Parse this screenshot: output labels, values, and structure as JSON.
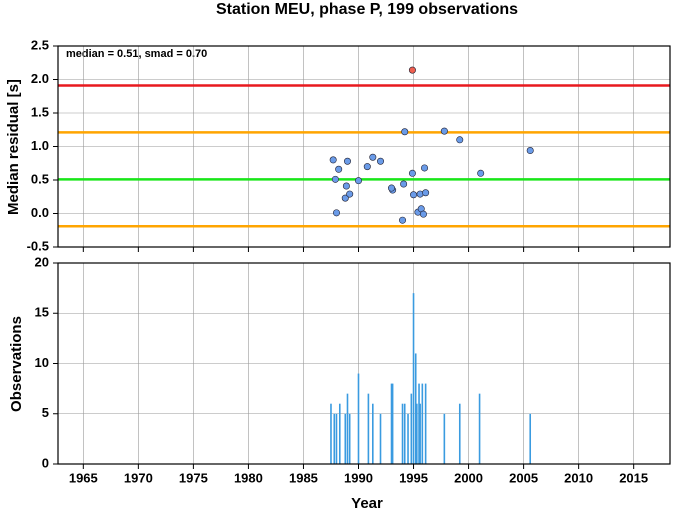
{
  "chart_data": [
    {
      "type": "scatter",
      "title": "Station MEU, phase P, 199 observations",
      "annotation": "median = 0.51, smad = 0.70",
      "y_label": "Median residual [s]",
      "x": [
        1987.7,
        1987.9,
        1988.0,
        1988.2,
        1989.0,
        1988.9,
        1988.8,
        1989.2,
        1990.0,
        1990.8,
        1991.3,
        1992.0,
        1993.1,
        1993.0,
        1994.0,
        1994.1,
        1994.2,
        1994.9,
        1994.9,
        1995.0,
        1995.4,
        1995.6,
        1995.7,
        1995.9,
        1996.1,
        1996.0,
        1997.8,
        1999.2,
        2001.1,
        2005.6
      ],
      "values": [
        0.8,
        0.51,
        0.01,
        0.66,
        0.78,
        0.41,
        0.23,
        0.29,
        0.49,
        0.7,
        0.84,
        0.78,
        0.35,
        0.38,
        -0.1,
        0.44,
        1.22,
        2.14,
        0.6,
        0.28,
        0.02,
        0.29,
        0.07,
        -0.01,
        0.31,
        0.68,
        1.23,
        1.1,
        0.6,
        0.94
      ],
      "point_colors": [
        "#6a9be8",
        "#6a9be8",
        "#6a9be8",
        "#6a9be8",
        "#6a9be8",
        "#6a9be8",
        "#6a9be8",
        "#6a9be8",
        "#6a9be8",
        "#6a9be8",
        "#6a9be8",
        "#6a9be8",
        "#6a9be8",
        "#6a9be8",
        "#6a9be8",
        "#6a9be8",
        "#6a9be8",
        "#f06050",
        "#6a9be8",
        "#6a9be8",
        "#6a9be8",
        "#6a9be8",
        "#6a9be8",
        "#6a9be8",
        "#6a9be8",
        "#6a9be8",
        "#6a9be8",
        "#6a9be8",
        "#6a9be8",
        "#6a9be8"
      ],
      "hlines": [
        {
          "value": 1.91,
          "color": "#e8191e"
        },
        {
          "value": 1.21,
          "color": "#ffa500"
        },
        {
          "value": 0.51,
          "color": "#19e619"
        },
        {
          "value": -0.19,
          "color": "#ffa500"
        }
      ],
      "xlim": [
        1962.7,
        2018.3
      ],
      "xticks": [
        1965,
        1970,
        1975,
        1980,
        1985,
        1990,
        1995,
        2000,
        2005,
        2010,
        2015
      ],
      "ylim": [
        -0.5,
        2.5
      ],
      "yticks": [
        -0.5,
        {
          "value": 0,
          "label": "0.0"
        },
        0.5,
        {
          "value": 1,
          "label": "1.0"
        },
        1.5,
        {
          "value": 2,
          "label": "2.0"
        },
        2.5
      ],
      "grid": true
    },
    {
      "type": "bar",
      "x_label": "Year",
      "y_label": "Observations",
      "color": "#3a9be0",
      "x": [
        1987.5,
        1987.8,
        1988.0,
        1988.3,
        1988.8,
        1989.0,
        1989.2,
        1990.0,
        1990.9,
        1991.3,
        1992.0,
        1993.0,
        1993.1,
        1994.0,
        1994.2,
        1994.5,
        1994.8,
        1995.0,
        1995.2,
        1995.3,
        1995.5,
        1995.6,
        1995.8,
        1996.1,
        1997.8,
        1999.2,
        2001.0,
        2005.6
      ],
      "values": [
        6,
        5,
        5,
        6,
        5,
        7,
        5,
        9,
        7,
        6,
        5,
        8,
        8,
        6,
        6,
        5,
        7,
        17,
        11,
        6,
        8,
        6,
        8,
        8,
        5,
        6,
        7,
        5
      ],
      "xlim": [
        1962.7,
        2018.3
      ],
      "xticks": [
        1965,
        1970,
        1975,
        1980,
        1985,
        1990,
        1995,
        2000,
        2005,
        2010,
        2015
      ],
      "ylim": [
        0,
        20
      ],
      "yticks": [
        0,
        5,
        10,
        15,
        20
      ],
      "grid": true
    }
  ]
}
